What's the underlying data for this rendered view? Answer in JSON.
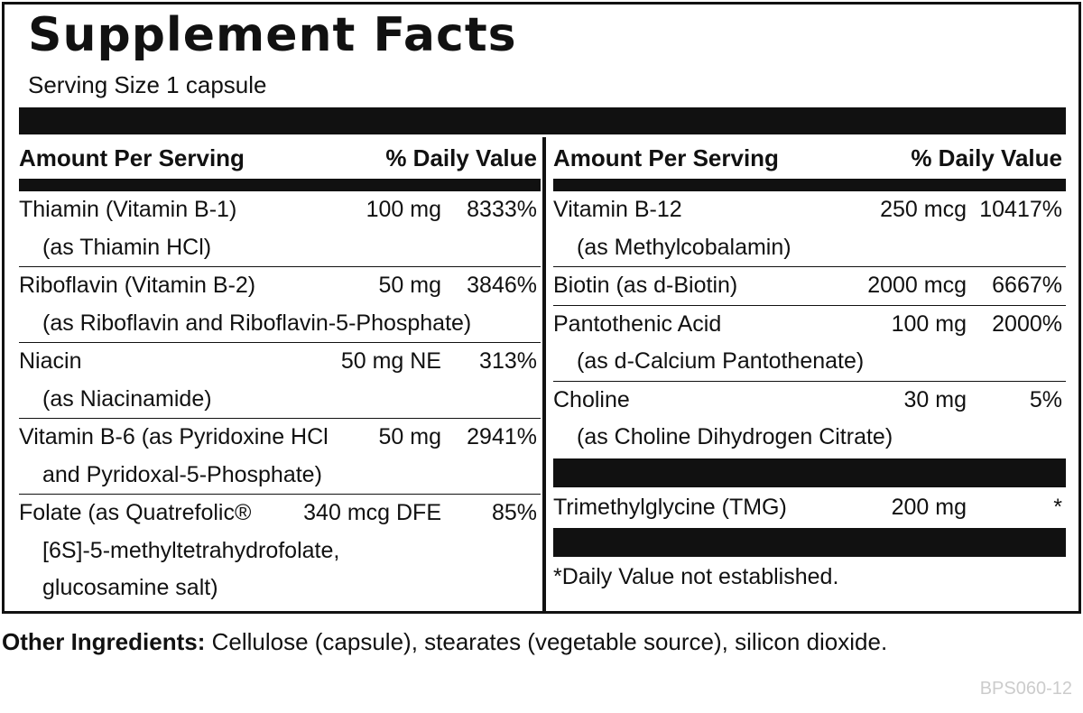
{
  "label": {
    "title": "Supplement Facts",
    "serving_size": "Serving Size 1 capsule",
    "columns": [
      {
        "header": {
          "amount": "Amount Per Serving",
          "dv": "% Daily Value"
        },
        "rows": [
          {
            "lines": [
              "Thiamin (Vitamin B-1)",
              "(as Thiamin HCl)"
            ],
            "amount": "100 mg",
            "dv": "8333%"
          },
          {
            "lines": [
              "Riboflavin (Vitamin B-2)",
              "(as Riboflavin and Riboflavin-5-Phosphate)"
            ],
            "amount": "50 mg",
            "dv": "3846%"
          },
          {
            "lines": [
              "Niacin",
              "(as Niacinamide)"
            ],
            "amount": "50 mg NE",
            "dv": "313%"
          },
          {
            "lines": [
              "Vitamin B-6 (as Pyridoxine HCl",
              "and Pyridoxal-5-Phosphate)"
            ],
            "amount": "50 mg",
            "dv": "2941%"
          },
          {
            "lines": [
              "Folate (as Quatrefolic®",
              "[6S]-5-methyltetrahydrofolate,",
              "glucosamine salt)"
            ],
            "amount": "340 mcg DFE",
            "dv": "85%"
          }
        ]
      },
      {
        "header": {
          "amount": "Amount Per Serving",
          "dv": "% Daily Value"
        },
        "rows": [
          {
            "lines": [
              "Vitamin B-12",
              "(as Methylcobalamin)"
            ],
            "amount": "250 mcg",
            "dv": "10417%"
          },
          {
            "lines": [
              "Biotin (as d-Biotin)"
            ],
            "amount": "2000 mcg",
            "dv": "6667%"
          },
          {
            "lines": [
              "Pantothenic Acid",
              "(as d-Calcium Pantothenate)"
            ],
            "amount": "100 mg",
            "dv": "2000%"
          },
          {
            "lines": [
              "Choline",
              "(as Choline Dihydrogen Citrate)"
            ],
            "amount": "30 mg",
            "dv": "5%"
          }
        ],
        "other_rows": [
          {
            "lines": [
              "Trimethylglycine (TMG)"
            ],
            "amount": "200 mg",
            "dv": "*"
          }
        ],
        "footnote": "*Daily Value not established."
      }
    ],
    "other_ingredients": {
      "label": "Other Ingredients:",
      "text": "Cellulose (capsule), stearates (vegetable source), silicon dioxide."
    },
    "code": "BPS060-12"
  }
}
